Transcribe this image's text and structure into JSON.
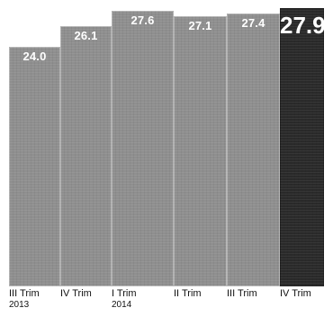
{
  "chart_data": {
    "type": "bar",
    "categories": [
      [
        "III Trim",
        "2013"
      ],
      [
        "IV Trim",
        ""
      ],
      [
        "I Trim",
        "2014"
      ],
      [
        "II Trim",
        ""
      ],
      [
        "III Trim",
        ""
      ],
      [
        "IV Trim",
        ""
      ]
    ],
    "values": [
      24.0,
      26.1,
      27.6,
      27.1,
      27.4,
      27.9
    ],
    "data_labels": [
      "24.0",
      "26.1",
      "27.6",
      "27.1",
      "27.4",
      "27.9"
    ],
    "title": "",
    "xlabel": "",
    "ylabel": "",
    "ylim": [
      0,
      28.0
    ],
    "grid": false,
    "legend": "none",
    "colors": {
      "bar_fill": "#8f8f8f",
      "bar_fill_highlight": "#2a2a2a",
      "label_color": "#ffffff",
      "tick_color": "#111111"
    },
    "highlight_index": 5
  }
}
